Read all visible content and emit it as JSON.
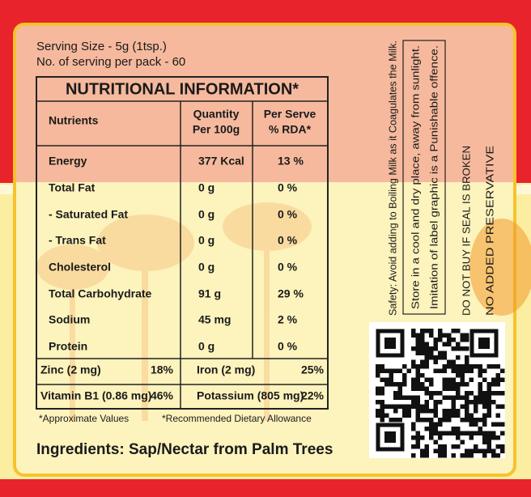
{
  "serving": {
    "size": "Serving Size - 5g (1tsp.)",
    "count": "No. of serving per pack - 60"
  },
  "table": {
    "title": "NUTRITIONAL INFORMATION*",
    "header": [
      [
        "Nutrients"
      ],
      [
        "Quantity",
        "Per 100g"
      ],
      [
        "Per Serve",
        "% RDA*"
      ]
    ],
    "rows": [
      [
        "Energy",
        "377 Kcal",
        "13 %"
      ],
      [
        "Total Fat",
        "0 g",
        "0 %"
      ],
      [
        " - Saturated Fat",
        "0 g",
        "0 %"
      ],
      [
        " - Trans Fat",
        "0 g",
        "0 %"
      ],
      [
        "Cholesterol",
        "0 g",
        "0 %"
      ],
      [
        "Total Carbohydrate",
        "91 g",
        "29 %"
      ],
      [
        "Sodium",
        "45 mg",
        "2 %"
      ],
      [
        "Protein",
        "0 g",
        "0 %"
      ]
    ],
    "minerals": [
      [
        "Zinc (2 mg)",
        "18%",
        "Iron (2 mg)",
        "25%"
      ],
      [
        "Vitamin B1 (0.86 mg)",
        "46%",
        "Potassium (805 mg)",
        "22%"
      ]
    ]
  },
  "footnotes": [
    "*Approximate Values",
    "*Recommended Dietary Allowance"
  ],
  "ingredients": "Ingredients: Sap/Nectar from Palm Trees",
  "side_notes": {
    "safety": "Safety: Avoid adding to Boiling Milk as it Coagulates the Milk.",
    "storage": [
      "Store in a cool and dry place, away from sunlight.",
      "Imitation of label graphic is a Punishable offence."
    ],
    "seal": "DO NOT BUY IF SEAL IS BROKEN",
    "preservative": "NO ADDED PRESERVATIVE"
  }
}
